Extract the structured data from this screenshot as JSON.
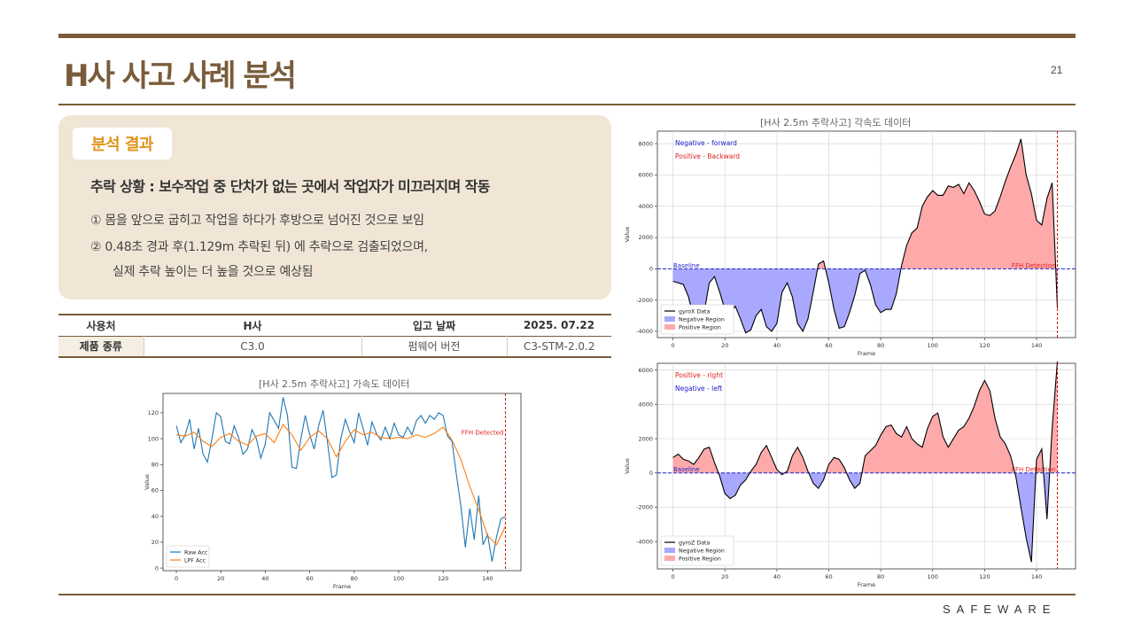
{
  "page": {
    "title": "H사 사고 사례 분석",
    "page_number": "21",
    "brand": "SAFEWARE",
    "colors": {
      "accent": "#7a5c3a",
      "panel": "#f1e6d6",
      "badge_text": "#e0931a",
      "table_header_bg": "#f5eee3"
    }
  },
  "analysis": {
    "badge": "분석 결과",
    "headline": "추락 상황 : 보수작업 중 단차가 없는 곳에서 작업자가 미끄러지며 작동",
    "items": [
      "① 몸을 앞으로 굽히고 작업을 하다가 후방으로 넘어진 것으로 보임",
      "② 0.48초 경과 후(1.129m 추락된 뒤) 에 추락으로 검출되었으며,",
      "실제 추락 높이는 더 높을 것으로 예상됨"
    ]
  },
  "info_table": {
    "row1": [
      "사용처",
      "H사",
      "입고 날짜",
      "2025. 07.22"
    ],
    "row2": [
      "제품 종류",
      "C3.0",
      "펌웨어 버전",
      "C3-STM-2.0.2"
    ]
  },
  "chart_data": [
    {
      "id": "acc",
      "type": "line",
      "title": "[H사 2.5m 추락사고] 가속도 데이터",
      "xlabel": "Frame",
      "ylabel": "Value",
      "xlim": [
        -6,
        155
      ],
      "ylim": [
        -2,
        135
      ],
      "xticks": [
        0,
        20,
        40,
        60,
        80,
        100,
        120,
        140
      ],
      "yticks": [
        0,
        20,
        40,
        60,
        80,
        100,
        120
      ],
      "grid": false,
      "legend_position": "lower-left",
      "annotation": {
        "text": "FFH Detected",
        "x": 148
      },
      "series": [
        {
          "name": "Raw Acc",
          "color": "#1f77b4",
          "x": [
            0,
            2,
            4,
            6,
            8,
            10,
            12,
            14,
            16,
            18,
            20,
            22,
            24,
            26,
            28,
            30,
            32,
            34,
            36,
            38,
            40,
            42,
            44,
            46,
            48,
            50,
            52,
            54,
            56,
            58,
            60,
            62,
            64,
            66,
            68,
            70,
            72,
            74,
            76,
            78,
            80,
            82,
            84,
            86,
            88,
            90,
            92,
            94,
            96,
            98,
            100,
            102,
            104,
            106,
            108,
            110,
            112,
            114,
            116,
            118,
            120,
            122,
            124,
            126,
            128,
            130,
            132,
            134,
            136,
            138,
            140,
            142,
            144,
            146,
            148
          ],
          "values": [
            110,
            97,
            103,
            115,
            92,
            108,
            88,
            82,
            100,
            120,
            117,
            98,
            96,
            110,
            101,
            88,
            92,
            107,
            100,
            85,
            96,
            120,
            114,
            108,
            132,
            118,
            78,
            77,
            100,
            118,
            103,
            92,
            110,
            122,
            97,
            70,
            72,
            100,
            115,
            105,
            97,
            120,
            108,
            95,
            113,
            104,
            99,
            109,
            100,
            112,
            103,
            101,
            109,
            103,
            114,
            118,
            112,
            118,
            115,
            120,
            118,
            102,
            98,
            72,
            48,
            16,
            46,
            22,
            56,
            18,
            26,
            5,
            24,
            38,
            40
          ]
        },
        {
          "name": "LPF Acc",
          "color": "#ff7f0e",
          "x": [
            0,
            4,
            8,
            12,
            16,
            20,
            24,
            28,
            32,
            36,
            40,
            44,
            48,
            52,
            56,
            60,
            64,
            68,
            72,
            76,
            80,
            84,
            88,
            92,
            96,
            100,
            104,
            108,
            112,
            116,
            120,
            124,
            128,
            132,
            136,
            140,
            144,
            148
          ],
          "values": [
            103,
            102,
            105,
            98,
            94,
            101,
            104,
            98,
            95,
            102,
            104,
            97,
            111,
            103,
            91,
            101,
            106,
            100,
            86,
            98,
            107,
            103,
            105,
            101,
            100,
            101,
            100,
            103,
            101,
            104,
            109,
            99,
            84,
            63,
            45,
            25,
            18,
            32
          ]
        }
      ]
    },
    {
      "id": "gyrox",
      "type": "area",
      "title": "[H사 2.5m 추락사고] 각속도 데이터",
      "xlabel": "Frame",
      "ylabel": "Value",
      "xlim": [
        -6,
        155
      ],
      "ylim": [
        -4400,
        8800
      ],
      "xticks": [
        0,
        20,
        40,
        60,
        80,
        100,
        120,
        140
      ],
      "yticks": [
        -4000,
        -2000,
        0,
        2000,
        4000,
        6000,
        8000
      ],
      "grid": true,
      "legend_position": "lower-left",
      "notes": [
        {
          "text": "Negative - forward",
          "color": "#2222cc"
        },
        {
          "text": "Positive - Backward",
          "color": "#dd2222"
        }
      ],
      "baseline_label": "Baseline",
      "annotation": {
        "text": "FFH Detection",
        "x": 148
      },
      "series": [
        {
          "name": "gyroX Data",
          "color": "#000000",
          "x": [
            0,
            2,
            4,
            6,
            8,
            10,
            12,
            14,
            16,
            18,
            20,
            22,
            24,
            26,
            28,
            30,
            32,
            34,
            36,
            38,
            40,
            42,
            44,
            46,
            48,
            50,
            52,
            54,
            56,
            58,
            60,
            62,
            64,
            66,
            68,
            70,
            72,
            74,
            76,
            78,
            80,
            82,
            84,
            86,
            88,
            90,
            92,
            94,
            96,
            98,
            100,
            102,
            104,
            106,
            108,
            110,
            112,
            114,
            116,
            118,
            120,
            122,
            124,
            126,
            128,
            130,
            132,
            134,
            136,
            138,
            140,
            142,
            144,
            146,
            148
          ],
          "values": [
            -800,
            -900,
            -1000,
            -1800,
            -3200,
            -3400,
            -2800,
            -900,
            -500,
            -1500,
            -2600,
            -2800,
            -2400,
            -3200,
            -4100,
            -3900,
            -3000,
            -2600,
            -3700,
            -4000,
            -3500,
            -1500,
            -900,
            -1800,
            -3500,
            -4000,
            -3200,
            -1500,
            300,
            500,
            -900,
            -2600,
            -3800,
            -3700,
            -2800,
            -1700,
            -300,
            -100,
            -1000,
            -2300,
            -2800,
            -2600,
            -2600,
            -1600,
            200,
            1500,
            2300,
            2600,
            4000,
            4600,
            5000,
            4700,
            4700,
            5300,
            5200,
            5400,
            4800,
            5500,
            5000,
            4300,
            3500,
            3400,
            3700,
            4600,
            5600,
            6500,
            7300,
            8300,
            6000,
            4800,
            3100,
            2800,
            4500,
            5500,
            -2500
          ]
        },
        {
          "name": "Negative Region",
          "color": "#a8a8ff",
          "values": []
        },
        {
          "name": "Positive Region",
          "color": "#ffaaaa",
          "values": []
        }
      ]
    },
    {
      "id": "gyroz",
      "type": "area",
      "title": "",
      "xlabel": "Frame",
      "ylabel": "Value",
      "xlim": [
        -6,
        155
      ],
      "ylim": [
        -5600,
        6400
      ],
      "xticks": [
        0,
        20,
        40,
        60,
        80,
        100,
        120,
        140
      ],
      "yticks": [
        -4000,
        -2000,
        0,
        2000,
        4000,
        6000
      ],
      "grid": true,
      "legend_position": "lower-left",
      "notes": [
        {
          "text": "Positive - right",
          "color": "#dd2222"
        },
        {
          "text": "Negative - left",
          "color": "#2222cc"
        }
      ],
      "baseline_label": "Baseline",
      "annotation": {
        "text": "FFH Detection",
        "x": 148
      },
      "series": [
        {
          "name": "gyroZ Data",
          "color": "#000000",
          "x": [
            0,
            2,
            4,
            6,
            8,
            10,
            12,
            14,
            16,
            18,
            20,
            22,
            24,
            26,
            28,
            30,
            32,
            34,
            36,
            38,
            40,
            42,
            44,
            46,
            48,
            50,
            52,
            54,
            56,
            58,
            60,
            62,
            64,
            66,
            68,
            70,
            72,
            74,
            76,
            78,
            80,
            82,
            84,
            86,
            88,
            90,
            92,
            94,
            96,
            98,
            100,
            102,
            104,
            106,
            108,
            110,
            112,
            114,
            116,
            118,
            120,
            122,
            124,
            126,
            128,
            130,
            132,
            134,
            136,
            138,
            140,
            142,
            144,
            146,
            148
          ],
          "values": [
            900,
            1100,
            800,
            700,
            500,
            900,
            1400,
            1500,
            600,
            -200,
            -1200,
            -1500,
            -1300,
            -700,
            -400,
            100,
            500,
            1200,
            1600,
            900,
            200,
            -100,
            100,
            1000,
            1500,
            900,
            100,
            -600,
            -900,
            -400,
            500,
            900,
            800,
            300,
            -400,
            -900,
            -600,
            1000,
            1300,
            1600,
            2200,
            2700,
            2800,
            2300,
            2100,
            2700,
            2000,
            1700,
            1500,
            2600,
            3300,
            3500,
            2100,
            1500,
            2000,
            2500,
            2700,
            3200,
            3900,
            4800,
            5400,
            4800,
            3200,
            2100,
            1700,
            1000,
            -200,
            -2000,
            -3800,
            -5200,
            800,
            1400,
            -2700,
            2600,
            6500
          ]
        },
        {
          "name": "Negative Region",
          "color": "#a8a8ff",
          "values": []
        },
        {
          "name": "Positive Region",
          "color": "#ffaaaa",
          "values": []
        }
      ]
    }
  ]
}
